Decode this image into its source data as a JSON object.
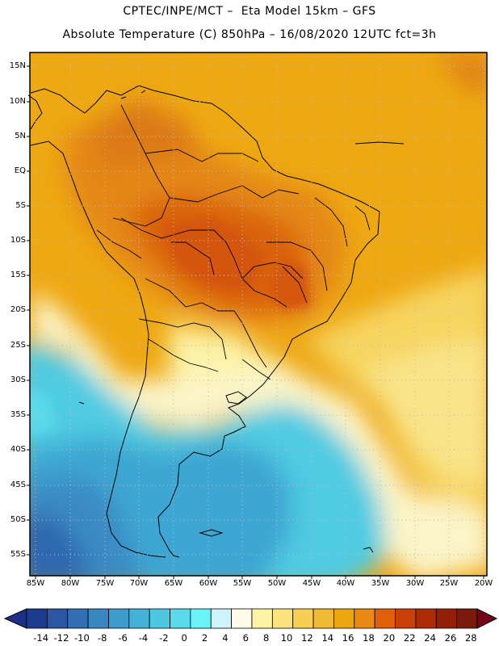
{
  "header": {
    "line1": "CPTEC/INPE/MCT –  Eta Model 15km – GFS",
    "line2": "Absolute Temperature (C) 850hPa – 16/08/2020 12UTC fct=3h"
  },
  "axes": {
    "lat_labels": [
      "15N",
      "10N",
      "5N",
      "EQ",
      "5S",
      "10S",
      "15S",
      "20S",
      "25S",
      "30S",
      "35S",
      "40S",
      "45S",
      "50S",
      "55S"
    ],
    "lon_labels": [
      "85W",
      "80W",
      "75W",
      "70W",
      "65W",
      "60W",
      "55W",
      "50W",
      "45W",
      "40W",
      "35W",
      "30W",
      "25W",
      "20W"
    ]
  },
  "colorbar": {
    "labels": [
      "-14",
      "-12",
      "-10",
      "-8",
      "-6",
      "-4",
      "-2",
      "0",
      "2",
      "4",
      "6",
      "8",
      "10",
      "12",
      "14",
      "16",
      "18",
      "20",
      "22",
      "24",
      "26",
      "28"
    ],
    "colors": [
      "#1d3c8e",
      "#2a56a4",
      "#336eb2",
      "#3a86c0",
      "#3d9ccb",
      "#44b2d6",
      "#4ec8e1",
      "#5ad9ea",
      "#6af3f7",
      "#cef4fa",
      "#fffbe6",
      "#fdf3a6",
      "#fbe47e",
      "#f6cf55",
      "#f0ba33",
      "#eda60f",
      "#e98b13",
      "#e0600a",
      "#c94105",
      "#ae2c05",
      "#922006",
      "#7a1a0a"
    ],
    "under_color": "#1e2f88",
    "over_color": "#72051c"
  }
}
